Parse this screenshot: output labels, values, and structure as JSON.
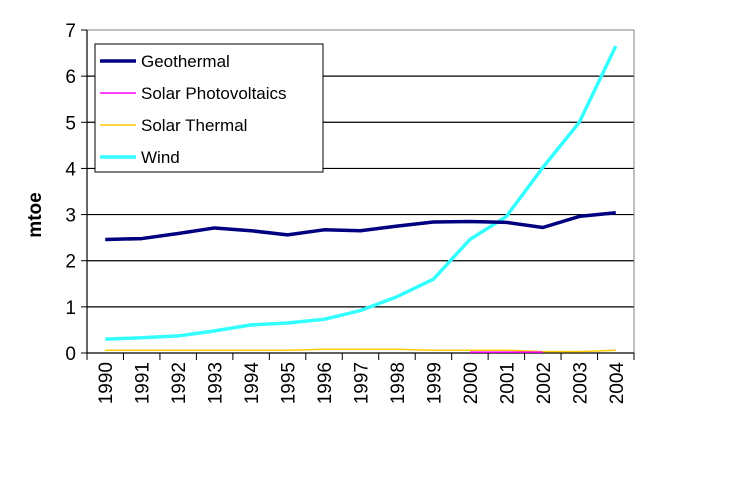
{
  "chart_data": {
    "type": "line",
    "title": "",
    "xlabel": "",
    "ylabel": "mtoe",
    "ylim": [
      0,
      7
    ],
    "yticks": [
      "0",
      "1",
      "2",
      "3",
      "4",
      "5",
      "6",
      "7"
    ],
    "grid": true,
    "legend_position": "top-left",
    "categories": [
      "1990",
      "1991",
      "1992",
      "1993",
      "1994",
      "1995",
      "1996",
      "1997",
      "1998",
      "1999",
      "2000",
      "2001",
      "2002",
      "2003",
      "2004"
    ],
    "series": [
      {
        "name": "Geothermal",
        "color": "#000080",
        "values": [
          2.46,
          2.48,
          2.59,
          2.71,
          2.65,
          2.56,
          2.67,
          2.65,
          2.75,
          2.84,
          2.85,
          2.83,
          2.72,
          2.96,
          3.04
        ]
      },
      {
        "name": "Solar Photovoltaics",
        "color": "#ff00ff",
        "values": [
          null,
          null,
          null,
          null,
          null,
          null,
          null,
          null,
          null,
          null,
          0.02,
          0.02,
          0.02,
          null,
          null
        ]
      },
      {
        "name": "Solar Thermal",
        "color": "#ffcc00",
        "values": [
          0.06,
          0.06,
          0.06,
          0.06,
          0.06,
          0.06,
          0.08,
          0.08,
          0.08,
          0.06,
          0.06,
          0.06,
          0.03,
          0.03,
          0.06
        ]
      },
      {
        "name": "Wind",
        "color": "#33ffff",
        "values": [
          0.3,
          0.33,
          0.37,
          0.48,
          0.61,
          0.65,
          0.73,
          0.92,
          1.22,
          1.6,
          2.46,
          2.96,
          4.02,
          5.0,
          6.65
        ]
      }
    ]
  }
}
